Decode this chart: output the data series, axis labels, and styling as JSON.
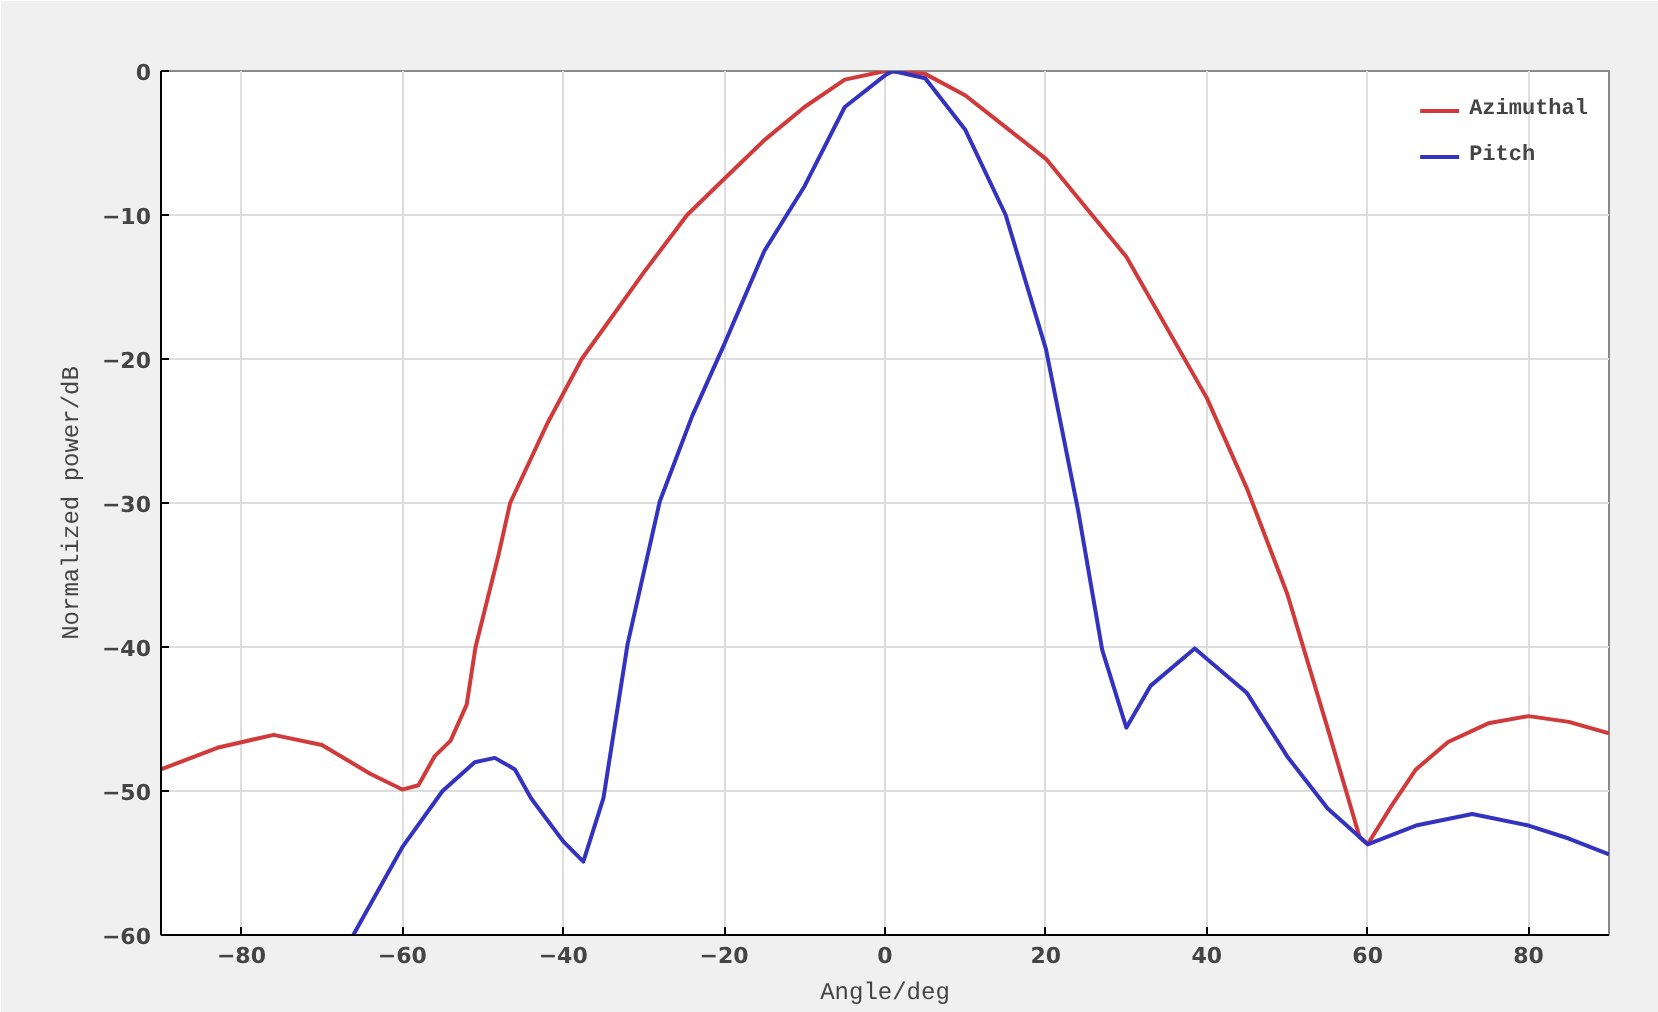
{
  "chart_data": {
    "type": "line",
    "xlabel": "Angle/deg",
    "ylabel": "Normalized power/dB",
    "xlim": [
      -90,
      90
    ],
    "ylim": [
      -60,
      0
    ],
    "xticks": [
      -80,
      -60,
      -40,
      -20,
      0,
      20,
      40,
      60,
      80
    ],
    "yticks": [
      -60,
      -50,
      -40,
      -30,
      -20,
      -10,
      0
    ],
    "grid": true,
    "legend": "top right",
    "line_style": "solid",
    "marker": "none",
    "series": [
      {
        "name": "Azimuthal",
        "color": "#d03a3a",
        "x": [
          -90,
          -83,
          -76,
          -70,
          -64,
          -60,
          -58,
          -56,
          -54,
          -52,
          -50.9,
          -48,
          -46.6,
          -42,
          -37.7,
          -30,
          -24.6,
          -20,
          -15,
          -10,
          -5,
          0,
          5,
          10,
          20,
          30,
          40,
          45,
          50,
          55,
          59,
          60,
          63,
          66,
          70,
          75,
          80,
          85,
          90
        ],
        "values": [
          -48.5,
          -47,
          -46.1,
          -46.8,
          -48.8,
          -49.9,
          -49.6,
          -47.6,
          -46.5,
          -44,
          -40,
          -33.5,
          -30,
          -24.5,
          -20,
          -14,
          -10,
          -7.5,
          -4.8,
          -2.5,
          -0.6,
          0,
          -0.2,
          -1.7,
          -6.1,
          -12.9,
          -22.7,
          -29,
          -36.3,
          -45.6,
          -53.2,
          -53.7,
          -51,
          -48.5,
          -46.6,
          -45.3,
          -44.8,
          -45.2,
          -46
        ]
      },
      {
        "name": "Pitch",
        "color": "#3333c0",
        "x": [
          -66.1,
          -60,
          -55,
          -51,
          -48.5,
          -46,
          -44,
          -40,
          -37.5,
          -35,
          -32,
          -28,
          -24,
          -20,
          -15,
          -10,
          -5,
          0,
          1,
          5,
          10,
          15,
          20,
          24,
          27,
          30,
          33,
          38.5,
          45,
          50,
          55,
          60,
          66,
          73,
          80,
          85,
          90
        ],
        "values": [
          -60,
          -53.9,
          -50,
          -48,
          -47.7,
          -48.5,
          -50.5,
          -53.5,
          -54.9,
          -50.5,
          -39.8,
          -29.9,
          -24,
          -19,
          -12.5,
          -8,
          -2.5,
          -0.3,
          0,
          -0.5,
          -4.1,
          -10,
          -19.3,
          -30.5,
          -40.2,
          -45.6,
          -42.7,
          -40.1,
          -43.2,
          -47.6,
          -51.2,
          -53.7,
          -52.4,
          -51.6,
          -52.4,
          -53.3,
          -54.4
        ]
      }
    ]
  }
}
